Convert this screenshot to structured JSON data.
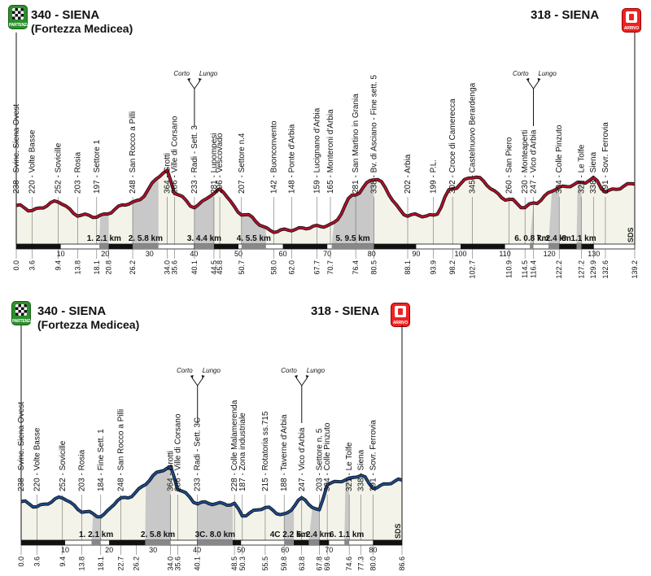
{
  "profiles": [
    {
      "start_title": "340 - SIENA",
      "start_sub": "(Fortezza Medicea)",
      "end_title": "318 - SIENA",
      "start_badge": "PARTENZA",
      "end_badge": "ARRIVO",
      "line_color": "#b0102a",
      "total_km": 139.2,
      "tick_labels": [
        "10",
        "20",
        "30",
        "40",
        "50",
        "60",
        "70",
        "80",
        "90",
        "100",
        "110",
        "120",
        "130"
      ],
      "distances": [
        "0.0",
        "3.6",
        "9.4",
        "13.8",
        "18.1",
        "20.8",
        "26.2",
        "34.0",
        "35.6",
        "40.1",
        "44.5",
        "45.8",
        "50.7",
        "58.0",
        "62.0",
        "67.7",
        "70.7",
        "76.4",
        "80.5",
        "88.1",
        "93.9",
        "98.2",
        "102.7",
        "110.9",
        "114.5",
        "116.4",
        "122.2",
        "127.2",
        "129.9",
        "132.6",
        "139.2"
      ],
      "places": [
        {
          "km": 0.0,
          "label": "238 - Svinc. Siena Ovest",
          "alt": 238
        },
        {
          "km": 3.6,
          "label": "220 - Volte Basse",
          "alt": 220
        },
        {
          "km": 9.4,
          "label": "252 - Sovicille",
          "alt": 252
        },
        {
          "km": 13.8,
          "label": "203 - Rosia",
          "alt": 203
        },
        {
          "km": 18.1,
          "label": "197 - Settore 1",
          "alt": 197
        },
        {
          "km": 26.2,
          "label": "248 - San Rocco a Pilli",
          "alt": 248
        },
        {
          "km": 34.0,
          "label": "364 - Grotti",
          "alt": 364
        },
        {
          "km": 35.6,
          "label": "286 - Ville di Corsano",
          "alt": 286
        },
        {
          "km": 40.1,
          "label": "233 - Radi - Sett. 3",
          "alt": 233
        },
        {
          "km": 44.5,
          "label": "281 - Lupompesi",
          "alt": 281
        },
        {
          "km": 45.8,
          "label": "296 - Vescovado",
          "alt": 296
        },
        {
          "km": 50.7,
          "label": "207 - Settore n.4",
          "alt": 207
        },
        {
          "km": 58.0,
          "label": "142 - Buonconvento",
          "alt": 142
        },
        {
          "km": 62.0,
          "label": "148 - Ponte d'Arbia",
          "alt": 148
        },
        {
          "km": 67.7,
          "label": "159 - Lucignano d'Arbia",
          "alt": 159
        },
        {
          "km": 70.7,
          "label": "165 - Monteroni d'Arbia",
          "alt": 165
        },
        {
          "km": 76.4,
          "label": "281 - San Martino in Grania",
          "alt": 281
        },
        {
          "km": 80.5,
          "label": "338 - Bv. di Asciano - Fine sett. 5",
          "alt": 338
        },
        {
          "km": 88.1,
          "label": "202 - Arbia",
          "alt": 202
        },
        {
          "km": 93.9,
          "label": "199 - P.L.",
          "alt": 199
        },
        {
          "km": 98.2,
          "label": "302 - Croce di Camerecca",
          "alt": 302
        },
        {
          "km": 102.7,
          "label": "345 - Castelnuovo Berardenga",
          "alt": 345
        },
        {
          "km": 110.9,
          "label": "260 - San Piero",
          "alt": 260
        },
        {
          "km": 114.5,
          "label": "230 - Monteaperti",
          "alt": 230
        },
        {
          "km": 116.4,
          "label": "247 - Vico d'Arbia",
          "alt": 247
        },
        {
          "km": 122.2,
          "label": "304 - Colle Pinzuto",
          "alt": 304
        },
        {
          "km": 127.2,
          "label": "321 - Le Tolfe",
          "alt": 321
        },
        {
          "km": 129.9,
          "label": "338 - Siena",
          "alt": 338
        },
        {
          "km": 132.6,
          "label": "291 - Sovr. Ferrovia",
          "alt": 291
        }
      ],
      "segments": [
        {
          "label": "1. 2.1 km",
          "from": 18.7,
          "to": 20.8
        },
        {
          "label": "2. 5.8 km",
          "from": 26.2,
          "to": 32.0
        },
        {
          "label": "3. 4.4 km",
          "from": 40.1,
          "to": 44.5
        },
        {
          "label": "4. 5.5 km",
          "from": 50.7,
          "to": 56.2
        },
        {
          "label": "5. 9.5 km",
          "from": 71.0,
          "to": 80.5
        },
        {
          "label": "6. 0.8 km",
          "from": 115.6,
          "to": 116.4
        },
        {
          "label": "7. 2.4 km",
          "from": 119.8,
          "to": 122.2
        },
        {
          "label": "8. 1.1 km",
          "from": 126.1,
          "to": 127.2
        }
      ],
      "corto_lungo": [
        {
          "km": 40.1,
          "corto": "Corto",
          "lungo": "Lungo"
        },
        {
          "km": 116.4,
          "corto": "Corto",
          "lungo": "Lungo"
        }
      ],
      "sds": "SDS"
    },
    {
      "start_title": "340 - SIENA",
      "start_sub": "(Fortezza Medicea)",
      "end_title": "318 - SIENA",
      "start_badge": "PARTENZA",
      "end_badge": "ARRIVO",
      "line_color": "#1b4a8a",
      "total_km": 86.6,
      "tick_labels": [
        "10",
        "20",
        "30",
        "40",
        "50",
        "60",
        "70",
        "80"
      ],
      "distances": [
        "0.0",
        "3.6",
        "9.4",
        "13.8",
        "18.1",
        "22.7",
        "26.2",
        "34.0",
        "35.6",
        "40.1",
        "48.5",
        "50.3",
        "55.5",
        "59.8",
        "63.8",
        "67.8",
        "69.6",
        "74.6",
        "77.3",
        "80.0",
        "86.6"
      ],
      "places": [
        {
          "km": 0.0,
          "label": "238 - Svinc. Siena Ovest",
          "alt": 238
        },
        {
          "km": 3.6,
          "label": "220 - Volte Basse",
          "alt": 220
        },
        {
          "km": 9.4,
          "label": "252 - Sovicille",
          "alt": 252
        },
        {
          "km": 13.8,
          "label": "203 - Rosia",
          "alt": 203
        },
        {
          "km": 18.1,
          "label": "184 - Fine Sett. 1",
          "alt": 184
        },
        {
          "km": 22.7,
          "label": "248 - San Rocco a Pilli",
          "alt": 248
        },
        {
          "km": 34.0,
          "label": "364 - Grotti",
          "alt": 364
        },
        {
          "km": 35.6,
          "label": "286 - Ville di Corsano",
          "alt": 286
        },
        {
          "km": 40.1,
          "label": "233 - Radi - Sett. 3C",
          "alt": 233
        },
        {
          "km": 48.5,
          "label": "228 - Colle Malamerenda",
          "alt": 228
        },
        {
          "km": 50.3,
          "label": "187 - Zona industriale",
          "alt": 187
        },
        {
          "km": 55.5,
          "label": "215 - Rotatoria ss.715",
          "alt": 215
        },
        {
          "km": 59.8,
          "label": "188 - Taverne d'Arbia",
          "alt": 188
        },
        {
          "km": 63.8,
          "label": "247 - Vico d'Arbia",
          "alt": 247
        },
        {
          "km": 67.8,
          "label": "203 - Settore n. 5",
          "alt": 203
        },
        {
          "km": 69.6,
          "label": "304 - Colle Pinzuto",
          "alt": 304
        },
        {
          "km": 74.6,
          "label": "321 - Le Tolfe",
          "alt": 321
        },
        {
          "km": 77.3,
          "label": "338 - Siena",
          "alt": 338
        },
        {
          "km": 80.0,
          "label": "291 - Sovr. Ferrovia",
          "alt": 291
        }
      ],
      "segments": [
        {
          "label": "1. 2.1 km",
          "from": 16.0,
          "to": 18.1
        },
        {
          "label": "2. 5.8 km",
          "from": 28.2,
          "to": 34.0
        },
        {
          "label": "3C. 8.0 km",
          "from": 40.1,
          "to": 48.1
        },
        {
          "label": "4C 2.2 km",
          "from": 59.8,
          "to": 62.0
        },
        {
          "label": "5. 2.4 km",
          "from": 65.4,
          "to": 67.8
        },
        {
          "label": "6. 1.1 km",
          "from": 73.5,
          "to": 74.6
        }
      ],
      "corto_lungo": [
        {
          "km": 40.1,
          "corto": "Corto",
          "lungo": "Lungo"
        },
        {
          "km": 63.8,
          "corto": "Corto",
          "lungo": "Lungo"
        }
      ],
      "sds": "SDS"
    }
  ]
}
